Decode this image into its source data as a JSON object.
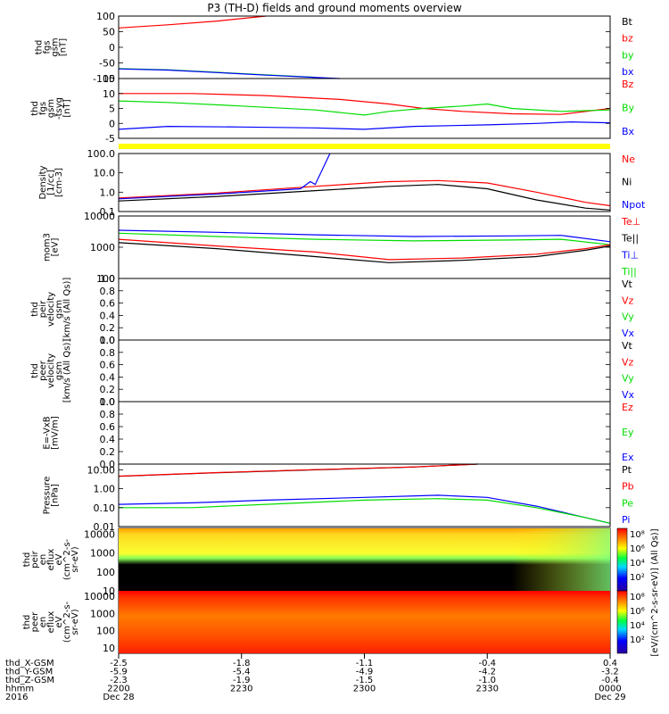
{
  "title": "P3 (TH-D) fields and ground moments overview",
  "chart_data": {
    "type": "line",
    "title": "P3 (TH-D) fields and ground moments overview",
    "time_axis": {
      "labels": [
        "2200",
        "2230",
        "2300",
        "2330",
        "0000"
      ],
      "date_start": "Dec 28",
      "date_end": "Dec 29",
      "year": "2016",
      "rows": [
        {
          "name": "thd_X-GSM",
          "values": [
            "-2.5",
            "-1.8",
            "-1.1",
            "-0.4",
            "0.4"
          ]
        },
        {
          "name": "thd_Y-GSM",
          "values": [
            "-5.9",
            "-5.4",
            "-4.9",
            "-4.2",
            "-3.2"
          ]
        },
        {
          "name": "thd_Z-GSM",
          "values": [
            "-2.3",
            "-1.9",
            "-1.5",
            "-1.0",
            "-0.4"
          ]
        },
        {
          "name": "hhmm",
          "values": [
            "2200",
            "2230",
            "2300",
            "2330",
            "0000"
          ]
        }
      ]
    },
    "panels": [
      {
        "ylabel": [
          "thd",
          "fgs",
          "gsm",
          "[nT]"
        ],
        "yscale": "linear",
        "ylim": [
          -100,
          100
        ],
        "ticks": [
          "100",
          "50",
          "0",
          "-50",
          "-100"
        ],
        "legend": [
          {
            "name": "Bt",
            "color": "#000000"
          },
          {
            "name": "bz",
            "color": "#ff0000"
          },
          {
            "name": "by",
            "color": "#00dd00"
          },
          {
            "name": "bx",
            "color": "#0000ff"
          }
        ],
        "series": [
          {
            "name": "bz",
            "color": "#ff0000",
            "x": [
              0,
              0.1,
              0.2,
              0.3
            ],
            "y": [
              62,
              72,
              84,
              100
            ]
          },
          {
            "name": "by",
            "color": "#00dd00",
            "x": [
              0,
              0.1,
              0.2,
              0.3,
              0.4
            ],
            "y": [
              -68,
              -72,
              -80,
              -88,
              -96
            ]
          },
          {
            "name": "bx",
            "color": "#0000ff",
            "x": [
              0,
              0.1,
              0.2,
              0.3,
              0.45
            ],
            "y": [
              -69,
              -73,
              -81,
              -89,
              -100
            ]
          }
        ]
      },
      {
        "ylabel": [
          "thd",
          "fgs",
          "gsm",
          "-tsyg",
          "[nT]"
        ],
        "yscale": "linear",
        "ylim": [
          -5,
          15
        ],
        "ticks": [
          "15",
          "10",
          "5",
          "0",
          "-5"
        ],
        "legend": [
          {
            "name": "Bz",
            "color": "#ff0000"
          },
          {
            "name": "By",
            "color": "#00dd00"
          },
          {
            "name": "Bx",
            "color": "#0000ff"
          }
        ],
        "series": [
          {
            "name": "Bz",
            "color": "#ff0000",
            "x": [
              0,
              0.15,
              0.3,
              0.45,
              0.55,
              0.62,
              0.7,
              0.8,
              0.9,
              1.0
            ],
            "y": [
              10,
              10,
              9.3,
              8,
              6.5,
              5,
              4,
              3.2,
              3,
              5
            ]
          },
          {
            "name": "By",
            "color": "#00dd00",
            "x": [
              0,
              0.1,
              0.25,
              0.4,
              0.5,
              0.55,
              0.62,
              0.7,
              0.75,
              0.8,
              0.9,
              1.0
            ],
            "y": [
              7.5,
              7,
              5.8,
              4.5,
              2.8,
              4,
              5,
              5.8,
              6.5,
              5,
              4,
              4.5
            ]
          },
          {
            "name": "Bx",
            "color": "#0000ff",
            "x": [
              0,
              0.1,
              0.25,
              0.4,
              0.5,
              0.6,
              0.75,
              0.85,
              0.92,
              1.0
            ],
            "y": [
              -2,
              -1,
              -1.2,
              -1.5,
              -2,
              -1,
              -0.5,
              0,
              0.5,
              0.2
            ]
          }
        ]
      },
      {
        "ylabel": [
          "Density",
          "[1/cc]",
          "[cm-3]"
        ],
        "yscale": "log",
        "ylim": [
          0.1,
          100
        ],
        "ticks": [
          "100.0",
          "10.0",
          "1.0",
          "0.1"
        ],
        "legend": [
          {
            "name": "Ne",
            "color": "#ff0000"
          },
          {
            "name": "Ni",
            "color": "#000000"
          },
          {
            "name": "Npot",
            "color": "#0000ff"
          }
        ],
        "series": [
          {
            "name": "Ne",
            "color": "#ff0000",
            "x": [
              0,
              0.2,
              0.4,
              0.55,
              0.65,
              0.75,
              0.85,
              0.95,
              1.0
            ],
            "y": [
              0.5,
              0.9,
              2,
              3.5,
              4,
              3,
              1,
              0.3,
              0.2
            ]
          },
          {
            "name": "Ni",
            "color": "#000000",
            "x": [
              0,
              0.2,
              0.4,
              0.55,
              0.65,
              0.75,
              0.85,
              0.95,
              1.0
            ],
            "y": [
              0.35,
              0.6,
              1.2,
              2,
              2.5,
              1.5,
              0.4,
              0.15,
              0.12
            ]
          },
          {
            "name": "Npot",
            "color": "#0000ff",
            "x": [
              0,
              0.2,
              0.37,
              0.39,
              0.4,
              0.43
            ],
            "y": [
              0.45,
              0.8,
              1.5,
              3.5,
              2.5,
              100
            ]
          }
        ]
      },
      {
        "ylabel": [
          "mom3",
          "[eV]"
        ],
        "yscale": "log",
        "ylim": [
          100,
          10000
        ],
        "ticks": [
          "10000",
          "1000",
          "100"
        ],
        "legend": [
          {
            "name": "Te⊥",
            "color": "#ff0000"
          },
          {
            "name": "Te||",
            "color": "#000000"
          },
          {
            "name": "Ti⊥",
            "color": "#0000ff"
          },
          {
            "name": "Ti||",
            "color": "#00dd00"
          }
        ],
        "series": [
          {
            "name": "Ti⊥",
            "color": "#0000ff",
            "x": [
              0,
              0.2,
              0.4,
              0.6,
              0.8,
              0.9,
              1.0
            ],
            "y": [
              3500,
              3000,
              2500,
              2200,
              2300,
              2400,
              1500
            ]
          },
          {
            "name": "Ti||",
            "color": "#00dd00",
            "x": [
              0,
              0.2,
              0.4,
              0.6,
              0.8,
              0.9,
              1.0
            ],
            "y": [
              2800,
              2200,
              1800,
              1600,
              1700,
              1800,
              1200
            ]
          },
          {
            "name": "Te⊥",
            "color": "#ff0000",
            "x": [
              0,
              0.2,
              0.4,
              0.55,
              0.7,
              0.85,
              0.95,
              1.0
            ],
            "y": [
              1800,
              1100,
              700,
              400,
              450,
              600,
              900,
              1200
            ]
          },
          {
            "name": "Te||",
            "color": "#000000",
            "x": [
              0,
              0.2,
              0.4,
              0.55,
              0.7,
              0.85,
              0.95,
              1.0
            ],
            "y": [
              1400,
              900,
              500,
              320,
              380,
              500,
              800,
              1100
            ]
          }
        ]
      },
      {
        "ylabel": [
          "thd",
          "peir",
          "velocity",
          "gsm",
          "[km/s (All Qs)]"
        ],
        "yscale": "linear",
        "ylim": [
          0,
          1
        ],
        "ticks": [
          "1.0",
          "0.8",
          "0.6",
          "0.4",
          "0.2",
          "0.0"
        ],
        "legend": [
          {
            "name": "Vt",
            "color": "#000000"
          },
          {
            "name": "Vz",
            "color": "#ff0000"
          },
          {
            "name": "Vy",
            "color": "#00dd00"
          },
          {
            "name": "Vx",
            "color": "#0000ff"
          }
        ],
        "series": []
      },
      {
        "ylabel": [
          "thd",
          "peer",
          "velocity",
          "gsm",
          "[km/s (All Qs)]"
        ],
        "yscale": "linear",
        "ylim": [
          0,
          1
        ],
        "ticks": [
          "1.0",
          "0.8",
          "0.6",
          "0.4",
          "0.2",
          "0.0"
        ],
        "legend": [
          {
            "name": "Vt",
            "color": "#000000"
          },
          {
            "name": "Vz",
            "color": "#ff0000"
          },
          {
            "name": "Vy",
            "color": "#00dd00"
          },
          {
            "name": "Vx",
            "color": "#0000ff"
          }
        ],
        "series": []
      },
      {
        "ylabel": [
          "E=-VxB",
          "[mV/m]"
        ],
        "yscale": "linear",
        "ylim": [
          0,
          1
        ],
        "ticks": [
          "1.0",
          "0.8",
          "0.6",
          "0.4",
          "0.2",
          "0.0"
        ],
        "legend": [
          {
            "name": "Ez",
            "color": "#ff0000"
          },
          {
            "name": "Ey",
            "color": "#00dd00"
          },
          {
            "name": "Ex",
            "color": "#0000ff"
          }
        ],
        "series": []
      },
      {
        "ylabel": [
          "Pressure",
          "[nPa]"
        ],
        "yscale": "log",
        "ylim": [
          0.01,
          20
        ],
        "ticks": [
          "10.00",
          "1.00",
          "0.10",
          "0.01"
        ],
        "legend": [
          {
            "name": "Pt",
            "color": "#000000"
          },
          {
            "name": "Pb",
            "color": "#ff0000"
          },
          {
            "name": "Pe",
            "color": "#00dd00"
          },
          {
            "name": "Pi",
            "color": "#0000ff"
          }
        ],
        "series": [
          {
            "name": "Pt",
            "color": "#000000",
            "x": [
              0,
              0.2,
              0.4,
              0.6,
              0.73
            ],
            "y": [
              4.5,
              7,
              10,
              14,
              20
            ]
          },
          {
            "name": "Pb",
            "color": "#ff0000",
            "x": [
              0,
              0.2,
              0.4,
              0.6,
              0.73
            ],
            "y": [
              4.6,
              7.1,
              10.2,
              14.2,
              20
            ]
          },
          {
            "name": "Pi",
            "color": "#0000ff",
            "x": [
              0,
              0.15,
              0.3,
              0.5,
              0.65,
              0.75,
              0.85,
              0.95,
              1.0
            ],
            "y": [
              0.15,
              0.18,
              0.25,
              0.35,
              0.45,
              0.35,
              0.12,
              0.03,
              0.015
            ]
          },
          {
            "name": "Pe",
            "color": "#00dd00",
            "x": [
              0,
              0.15,
              0.3,
              0.5,
              0.65,
              0.75,
              0.85,
              0.95,
              1.0
            ],
            "y": [
              0.1,
              0.1,
              0.15,
              0.25,
              0.3,
              0.25,
              0.1,
              0.03,
              0.015
            ]
          }
        ]
      },
      {
        "ylabel": [
          "thd",
          "peir",
          "en",
          "eflux",
          "eV",
          "(cm^2-s-",
          "sr-eV)"
        ],
        "type": "heatmap",
        "yscale": "log",
        "ylim": [
          10,
          20000
        ],
        "ticks": [
          "10000",
          "1000",
          "100",
          "10"
        ]
      },
      {
        "ylabel": [
          "thd",
          "peer",
          "en",
          "eflux",
          "eV",
          "(cm^2-s-",
          "sr-eV)"
        ],
        "type": "heatmap",
        "yscale": "log",
        "ylim": [
          5,
          20000
        ],
        "ticks": [
          "10000",
          "1000",
          "100",
          "10"
        ]
      }
    ],
    "colorbar": {
      "label": "[eV/(cm^2-s-sr-eV)] (All Qs)]",
      "ticks_top": [
        "10⁸",
        "10⁶",
        "10⁴",
        "10²"
      ],
      "ticks_bottom": [
        "10⁸",
        "10⁶",
        "10⁴",
        "10²"
      ]
    }
  }
}
